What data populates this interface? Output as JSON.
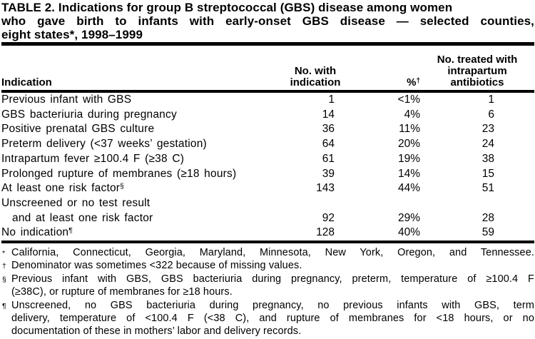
{
  "title": {
    "line1": "TABLE 2. Indications for group B streptococcal (GBS) disease among women",
    "line2": "who gave birth to infants with early-onset GBS disease — selected counties,",
    "line3": "eight states*, 1998–1999"
  },
  "header": {
    "col1": "Indication",
    "col2_line1": "No. with",
    "col2_line2": "indication",
    "col3_base": "%",
    "col3_sup": "†",
    "col4_line1": "No. treated with",
    "col4_line2": "intrapartum",
    "col4_line3": "antibiotics"
  },
  "rows": [
    {
      "label": "Previous infant with GBS",
      "marker": "",
      "n": "1",
      "pct": "<1%",
      "treated": "1"
    },
    {
      "label": "GBS bacteriuria during pregnancy",
      "marker": "",
      "n": "14",
      "pct": "4%",
      "treated": "6"
    },
    {
      "label": "Positive prenatal GBS culture",
      "marker": "",
      "n": "36",
      "pct": "11%",
      "treated": "23"
    },
    {
      "label": "Preterm delivery (<37 weeks’ gestation)",
      "marker": "",
      "n": "64",
      "pct": "20%",
      "treated": "24"
    },
    {
      "label": "Intrapartum fever ≥100.4 F (≥38 C)",
      "marker": "",
      "n": "61",
      "pct": "19%",
      "treated": "38"
    },
    {
      "label": "Prolonged rupture of membranes (≥18 hours)",
      "marker": "",
      "n": "39",
      "pct": "14%",
      "treated": "15"
    },
    {
      "label": "At least one risk factor",
      "marker": "§",
      "n": "143",
      "pct": "44%",
      "treated": "51"
    },
    {
      "label": "Unscreened or no test result",
      "marker": "",
      "n": "",
      "pct": "",
      "treated": ""
    },
    {
      "label": "and at least one risk factor",
      "marker": "",
      "n": "92",
      "pct": "29%",
      "treated": "28"
    },
    {
      "label": "No indication",
      "marker": "¶",
      "n": "128",
      "pct": "40%",
      "treated": "59"
    }
  ],
  "footnotes": [
    {
      "marker": "*",
      "text": "California, Connecticut, Georgia, Maryland, Minnesota, New York, Oregon, and Tennessee."
    },
    {
      "marker": "†",
      "text": "Denominator was sometimes <322 because of missing values."
    },
    {
      "marker": "§",
      "text": "Previous infant with GBS, GBS bacteriuria during pregnancy, preterm, temperature of ≥100.4 F"
    },
    {
      "marker": "",
      "text": "(≥38C), or rupture of membranes for ≥18 hours."
    },
    {
      "marker": "¶",
      "text": "Unscreened, no GBS bacteriuria during pregnancy, no previous infants with GBS, term"
    },
    {
      "marker": "",
      "text": "delivery, temperature of <100.4 F (<38 C), and rupture of membranes for <18 hours, or no"
    },
    {
      "marker": "",
      "text": "documentation of these in mothers’ labor and delivery records."
    }
  ],
  "chart_data": {
    "type": "table",
    "title": "TABLE 2. Indications for group B streptococcal (GBS) disease among women who gave birth to infants with early-onset GBS disease — selected counties, eight states*, 1998–1999",
    "columns": [
      "Indication",
      "No. with indication",
      "%",
      "No. treated with intrapartum antibiotics"
    ],
    "rows": [
      [
        "Previous infant with GBS",
        1,
        "<1%",
        1
      ],
      [
        "GBS bacteriuria during pregnancy",
        14,
        "4%",
        6
      ],
      [
        "Positive prenatal GBS culture",
        36,
        "11%",
        23
      ],
      [
        "Preterm delivery (<37 weeks’ gestation)",
        64,
        "20%",
        24
      ],
      [
        "Intrapartum fever ≥100.4 F (≥38 C)",
        61,
        "19%",
        38
      ],
      [
        "Prolonged rupture of membranes (≥18 hours)",
        39,
        "14%",
        15
      ],
      [
        "At least one risk factor§",
        143,
        "44%",
        51
      ],
      [
        "Unscreened or no test result and at least one risk factor",
        92,
        "29%",
        28
      ],
      [
        "No indication¶",
        128,
        "40%",
        59
      ]
    ]
  }
}
